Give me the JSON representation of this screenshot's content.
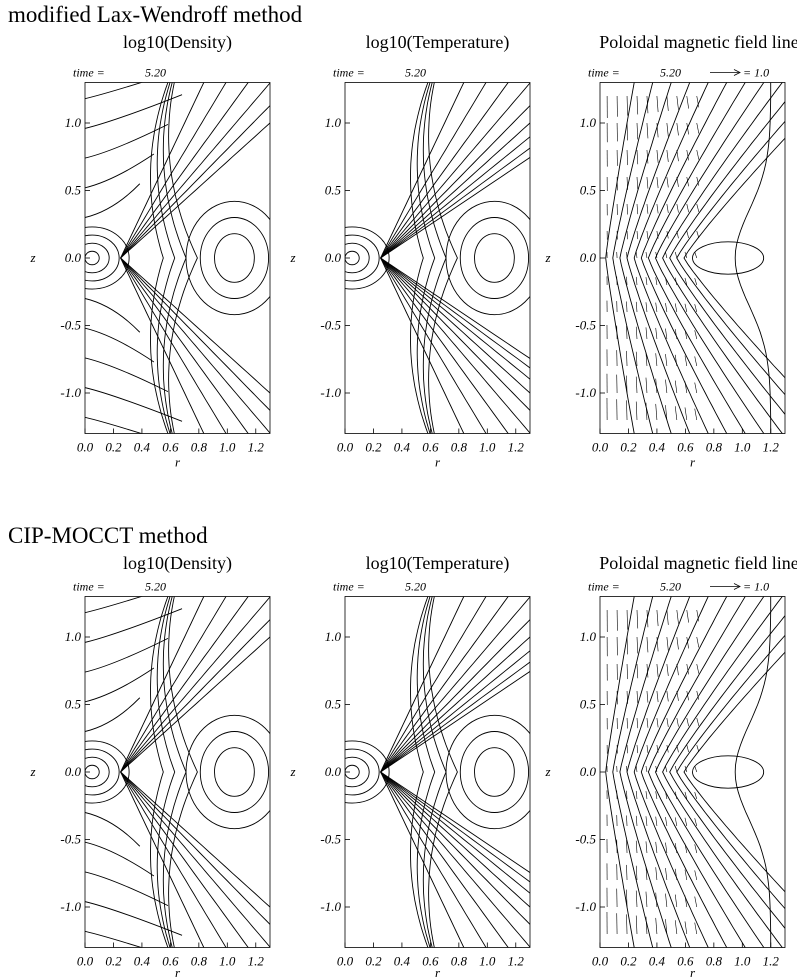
{
  "sections": [
    {
      "title": "modified Lax-Wendroff method",
      "panels": [
        {
          "title": "log10(Density)",
          "time_label": "time =",
          "time": "5.20",
          "x_label": "r",
          "y_label": "z",
          "x_ticks": [
            "0.0",
            "0.2",
            "0.4",
            "0.6",
            "0.8",
            "1.0",
            "1.2"
          ],
          "y_ticks": [
            "1.0",
            "0.5",
            "0.0",
            "-0.5",
            "-1.0"
          ]
        },
        {
          "title": "log10(Temperature)",
          "time_label": "time =",
          "time": "5.20",
          "x_label": "r",
          "y_label": "z",
          "x_ticks": [
            "0.0",
            "0.2",
            "0.4",
            "0.6",
            "0.8",
            "1.0",
            "1.2"
          ],
          "y_ticks": [
            "1.0",
            "0.5",
            "0.0",
            "-0.5",
            "-1.0"
          ]
        },
        {
          "title": "Poloidal magnetic field lines",
          "time_label": "time =",
          "time": "5.20",
          "vector_label": "= 1.0",
          "x_label": "r",
          "y_label": "z",
          "x_ticks": [
            "0.0",
            "0.2",
            "0.4",
            "0.6",
            "0.8",
            "1.0",
            "1.2"
          ],
          "y_ticks": [
            "1.0",
            "0.5",
            "0.0",
            "-0.5",
            "-1.0"
          ]
        }
      ]
    },
    {
      "title": "CIP-MOCCT method",
      "panels": [
        {
          "title": "log10(Density)",
          "time_label": "time =",
          "time": "5.20",
          "x_label": "r",
          "y_label": "z",
          "x_ticks": [
            "0.0",
            "0.2",
            "0.4",
            "0.6",
            "0.8",
            "1.0",
            "1.2"
          ],
          "y_ticks": [
            "1.0",
            "0.5",
            "0.0",
            "-0.5",
            "-1.0"
          ]
        },
        {
          "title": "log10(Temperature)",
          "time_label": "time =",
          "time": "5.20",
          "x_label": "r",
          "y_label": "z",
          "x_ticks": [
            "0.0",
            "0.2",
            "0.4",
            "0.6",
            "0.8",
            "1.0",
            "1.2"
          ],
          "y_ticks": [
            "1.0",
            "0.5",
            "0.0",
            "-0.5",
            "-1.0"
          ]
        },
        {
          "title": "Poloidal magnetic field lines",
          "time_label": "time =",
          "time": "5.20",
          "vector_label": "= 1.0",
          "x_label": "r",
          "y_label": "z",
          "x_ticks": [
            "0.0",
            "0.2",
            "0.4",
            "0.6",
            "0.8",
            "1.0",
            "1.2"
          ],
          "y_ticks": [
            "1.0",
            "0.5",
            "0.0",
            "-0.5",
            "-1.0"
          ]
        }
      ]
    }
  ]
}
